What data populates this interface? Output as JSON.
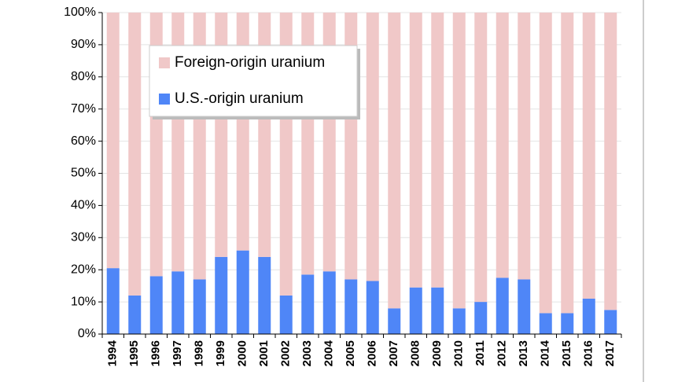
{
  "chart_data": {
    "type": "stacked_bar",
    "categories": [
      "1994",
      "1995",
      "1996",
      "1997",
      "1998",
      "1999",
      "2000",
      "2001",
      "2002",
      "2003",
      "2004",
      "2005",
      "2006",
      "2007",
      "2008",
      "2009",
      "2010",
      "2011",
      "2012",
      "2013",
      "2014",
      "2015",
      "2016",
      "2017"
    ],
    "series": [
      {
        "name": "U.S.-origin uranium",
        "color": "#4f86f7",
        "values": [
          20.5,
          12,
          18,
          19.5,
          17,
          24,
          26,
          24,
          12,
          18.5,
          19.5,
          17,
          16.5,
          8,
          14.5,
          14.5,
          8,
          10,
          17.5,
          17,
          6.5,
          6.5,
          11,
          7.5
        ]
      },
      {
        "name": "Foreign-origin uranium",
        "color": "#f0c8c8",
        "values": [
          79.5,
          88,
          82,
          80.5,
          83,
          76,
          74,
          76,
          88,
          81.5,
          80.5,
          83,
          83.5,
          92,
          85.5,
          85.5,
          92,
          90,
          82.5,
          83,
          93.5,
          93.5,
          89,
          92.5
        ]
      }
    ],
    "ylim": [
      0,
      100
    ],
    "yticks": [
      {
        "value": 0,
        "label": "0%"
      },
      {
        "value": 10,
        "label": "10%"
      },
      {
        "value": 20,
        "label": "20%"
      },
      {
        "value": 30,
        "label": "30%"
      },
      {
        "value": 40,
        "label": "40%"
      },
      {
        "value": 50,
        "label": "50%"
      },
      {
        "value": 60,
        "label": "60%"
      },
      {
        "value": 70,
        "label": "70%"
      },
      {
        "value": 80,
        "label": "80%"
      },
      {
        "value": 90,
        "label": "90%"
      },
      {
        "value": 100,
        "label": "100%"
      }
    ],
    "grid": true
  }
}
